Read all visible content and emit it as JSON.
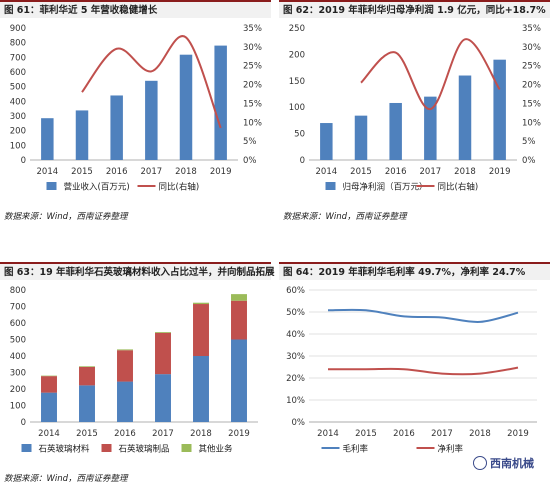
{
  "colors": {
    "blue": "#4f81bd",
    "red": "#c0504d",
    "green": "#9bbb59",
    "title_border": "#8a1c1c"
  },
  "panels": [
    {
      "title": "图 61：菲利华近 5 年营收稳健增长",
      "source": "数据来源：Wind，西南证券整理"
    },
    {
      "title": "图 62：2019 年菲利华归母净利润 1.9 亿元，同比+18.7%",
      "source": "数据来源：Wind，西南证券整理"
    },
    {
      "title": "图 63：19 年菲利华石英玻璃材料收入占比过半，并向制品拓展",
      "source": "数据来源：Wind，西南证券整理"
    },
    {
      "title": "图 64：2019 年菲利华毛利率 49.7%，净利率 24.7%",
      "source": ""
    }
  ],
  "watermark": {
    "text": "西南机械",
    "icon": "wechat-icon"
  },
  "chart_data": [
    {
      "type": "bar+line",
      "categories": [
        "2014",
        "2015",
        "2016",
        "2017",
        "2018",
        "2019"
      ],
      "series": [
        {
          "name": "营业收入(百万元)",
          "kind": "bar",
          "axis": "left",
          "values": [
            285,
            338,
            440,
            540,
            718,
            780
          ]
        },
        {
          "name": "同比(右轴)",
          "kind": "line",
          "axis": "right",
          "values": [
            null,
            18.0,
            29.5,
            23.5,
            32.5,
            8.5
          ]
        }
      ],
      "ylim": [
        0,
        900
      ],
      "yticks": [
        0,
        100,
        200,
        300,
        400,
        500,
        600,
        700,
        800,
        900
      ],
      "y2lim": [
        0,
        35
      ],
      "y2ticks": [
        "0%",
        "5%",
        "10%",
        "15%",
        "20%",
        "25%",
        "30%",
        "35%"
      ]
    },
    {
      "type": "bar+line",
      "categories": [
        "2014",
        "2015",
        "2016",
        "2017",
        "2018",
        "2019"
      ],
      "series": [
        {
          "name": "归母净利润（百万元）",
          "kind": "bar",
          "axis": "left",
          "values": [
            70,
            84,
            108,
            120,
            160,
            190
          ]
        },
        {
          "name": "同比(右轴)",
          "kind": "line",
          "axis": "right",
          "values": [
            null,
            20.5,
            28.5,
            13.5,
            32.0,
            18.7
          ]
        }
      ],
      "ylim": [
        0,
        250
      ],
      "yticks": [
        0,
        50,
        100,
        150,
        200,
        250
      ],
      "y2lim": [
        0,
        35
      ],
      "y2ticks": [
        "0%",
        "5%",
        "10%",
        "15%",
        "20%",
        "25%",
        "30%",
        "35%"
      ]
    },
    {
      "type": "stacked-bar",
      "categories": [
        "2014",
        "2015",
        "2016",
        "2017",
        "2018",
        "2019"
      ],
      "series": [
        {
          "name": "石英玻璃材料",
          "values": [
            178,
            222,
            245,
            290,
            400,
            500
          ]
        },
        {
          "name": "石英玻璃制品",
          "values": [
            100,
            112,
            190,
            250,
            315,
            235
          ]
        },
        {
          "name": "其他业务",
          "values": [
            3,
            4,
            5,
            5,
            8,
            40
          ]
        }
      ],
      "ylim": [
        0,
        800
      ],
      "yticks": [
        0,
        100,
        200,
        300,
        400,
        500,
        600,
        700,
        800
      ]
    },
    {
      "type": "line",
      "categories": [
        "2014",
        "2015",
        "2016",
        "2017",
        "2018",
        "2019"
      ],
      "series": [
        {
          "name": "毛利率",
          "values": [
            50.8,
            50.8,
            48.0,
            47.5,
            45.5,
            49.7
          ]
        },
        {
          "name": "净利率",
          "values": [
            24.0,
            24.0,
            24.0,
            22.0,
            22.0,
            24.7
          ]
        }
      ],
      "ylim": [
        0,
        60
      ],
      "yticks": [
        "0%",
        "10%",
        "20%",
        "30%",
        "40%",
        "50%",
        "60%"
      ]
    }
  ]
}
